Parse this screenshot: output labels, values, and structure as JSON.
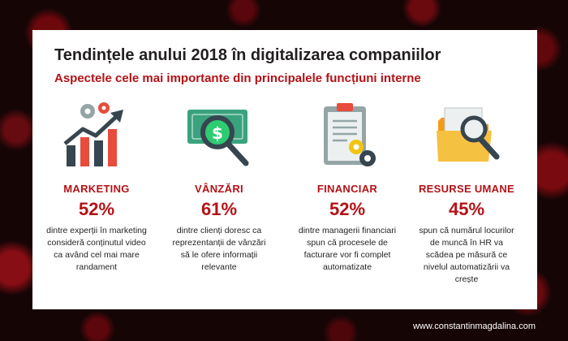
{
  "header": {
    "title": "Tendințele anului 2018 în digitalizarea companiilor",
    "subtitle": "Aspectele cele mai importante din principalele funcțiuni interne"
  },
  "columns": [
    {
      "label": "MARKETING",
      "percent": "52%",
      "desc": "dintre experții în marketing consideră conținutul video ca având cel mai mare randament",
      "icon": "chart-gears-icon"
    },
    {
      "label": "VÂNZĂRI",
      "percent": "61%",
      "desc": "dintre clienți doresc ca reprezentanții de vânzări să le ofere informații relevante",
      "icon": "money-magnifier-icon"
    },
    {
      "label": "FINANCIAR",
      "percent": "52%",
      "desc": "dintre managerii financiari spun că procesele de facturare vor fi complet automatizate",
      "icon": "clipboard-gears-icon"
    },
    {
      "label": "RESURSE UMANE",
      "percent": "45%",
      "desc": "spun că numărul locurilor de muncă în HR va scădea pe măsură ce nivelul automatizării va crește",
      "icon": "folder-magnifier-icon"
    }
  ],
  "footer": {
    "url": "www.constantinmagdalina.com"
  },
  "colors": {
    "accent": "#b31217",
    "dark": "#36454f",
    "text": "#231f20"
  }
}
